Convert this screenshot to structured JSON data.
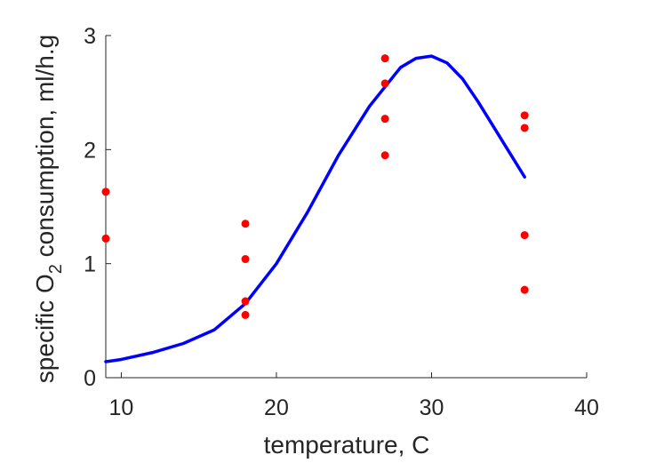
{
  "chart_data": {
    "type": "scatter",
    "xlabel": "temperature, C",
    "ylabel": {
      "prefix": "specific O",
      "subscript": "2",
      "suffix": " consumption, ml/h.g"
    },
    "xlim": [
      9,
      40
    ],
    "ylim": [
      0,
      3
    ],
    "xticks": [
      10,
      20,
      30,
      40
    ],
    "yticks": [
      0,
      1,
      2,
      3
    ],
    "grid": false,
    "colors": {
      "points": "#ff0000",
      "curve": "#0000ff",
      "axis": "#262626"
    },
    "series": [
      {
        "kind": "scatter",
        "points": [
          [
            9,
            1.63
          ],
          [
            9,
            1.22
          ],
          [
            18,
            1.35
          ],
          [
            18,
            1.04
          ],
          [
            18,
            0.67
          ],
          [
            18,
            0.55
          ],
          [
            27,
            2.8
          ],
          [
            27,
            2.58
          ],
          [
            27,
            2.27
          ],
          [
            27,
            1.95
          ],
          [
            36,
            2.3
          ],
          [
            36,
            2.19
          ],
          [
            36,
            1.25
          ],
          [
            36,
            0.77
          ]
        ]
      },
      {
        "kind": "line",
        "points": [
          [
            9,
            0.14
          ],
          [
            10,
            0.16
          ],
          [
            12,
            0.22
          ],
          [
            14,
            0.3
          ],
          [
            16,
            0.42
          ],
          [
            18,
            0.65
          ],
          [
            20,
            1.0
          ],
          [
            22,
            1.45
          ],
          [
            24,
            1.95
          ],
          [
            26,
            2.38
          ],
          [
            28,
            2.72
          ],
          [
            29,
            2.8
          ],
          [
            30,
            2.82
          ],
          [
            31,
            2.76
          ],
          [
            32,
            2.62
          ],
          [
            33,
            2.42
          ],
          [
            34,
            2.2
          ],
          [
            35,
            1.98
          ],
          [
            36,
            1.76
          ]
        ]
      }
    ]
  }
}
